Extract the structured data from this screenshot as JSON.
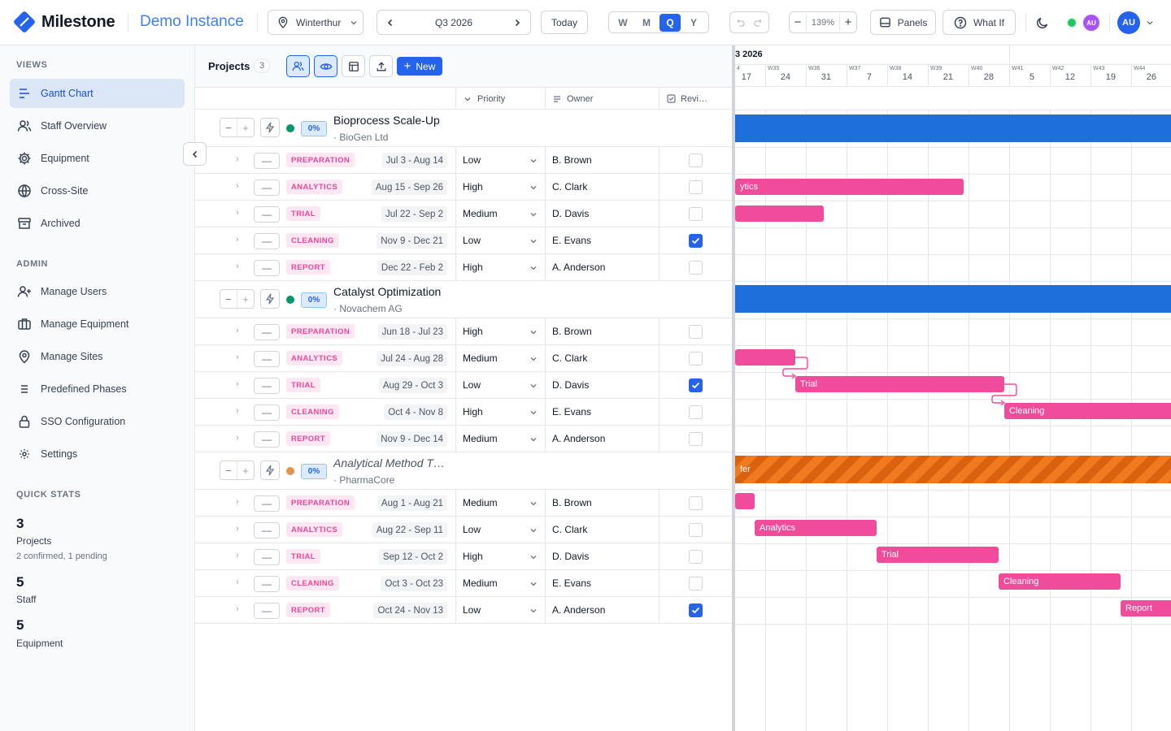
{
  "header": {
    "brand": "Milestone",
    "instance": "Demo Instance",
    "site": "Winterthur",
    "period": "Q3 2026",
    "today": "Today",
    "views": [
      "W",
      "M",
      "Q",
      "Y"
    ],
    "active_view": "Q",
    "zoom": "139%",
    "panels": "Panels",
    "whatif": "What If",
    "avatar_small": "AU",
    "avatar": "AU"
  },
  "sidebar": {
    "views_title": "VIEWS",
    "views": [
      {
        "label": "Gantt Chart",
        "icon": "gantt-icon",
        "active": true
      },
      {
        "label": "Staff Overview",
        "icon": "users-icon"
      },
      {
        "label": "Equipment",
        "icon": "gear-icon"
      },
      {
        "label": "Cross-Site",
        "icon": "globe-icon"
      },
      {
        "label": "Archived",
        "icon": "archive-icon"
      }
    ],
    "admin_title": "ADMIN",
    "admin": [
      {
        "label": "Manage Users",
        "icon": "user-plus-icon"
      },
      {
        "label": "Manage Equipment",
        "icon": "briefcase-icon"
      },
      {
        "label": "Manage Sites",
        "icon": "map-pin-icon"
      },
      {
        "label": "Predefined Phases",
        "icon": "list-icon"
      },
      {
        "label": "SSO Configuration",
        "icon": "lock-icon"
      },
      {
        "label": "Settings",
        "icon": "settings-icon"
      }
    ],
    "stats_title": "QUICK STATS",
    "stats": [
      {
        "num": "3",
        "label": "Projects",
        "sub": "2 confirmed, 1 pending"
      },
      {
        "num": "5",
        "label": "Staff",
        "sub": ""
      },
      {
        "num": "5",
        "label": "Equipment",
        "sub": ""
      }
    ]
  },
  "toolbar": {
    "title": "Projects",
    "count": "3",
    "new_label": "New"
  },
  "columns": {
    "priority": "Priority",
    "owner": "Owner",
    "review": "Revi…"
  },
  "projects": [
    {
      "name": "Bioprocess Scale-Up",
      "client": "· BioGen Ltd",
      "pct": "0%",
      "status_color": "#059669",
      "italic": false,
      "phases": [
        {
          "tag": "PREPARATION",
          "dates": "Jul 3 - Aug 14",
          "priority": "Low",
          "owner": "B. Brown",
          "review": false
        },
        {
          "tag": "ANALYTICS",
          "dates": "Aug 15 - Sep 26",
          "priority": "High",
          "owner": "C. Clark",
          "review": false
        },
        {
          "tag": "TRIAL",
          "dates": "Jul 22 - Sep 2",
          "priority": "Medium",
          "owner": "D. Davis",
          "review": false
        },
        {
          "tag": "CLEANING",
          "dates": "Nov 9 - Dec 21",
          "priority": "Low",
          "owner": "E. Evans",
          "review": true
        },
        {
          "tag": "REPORT",
          "dates": "Dec 22 - Feb 2",
          "priority": "High",
          "owner": "A. Anderson",
          "review": false
        }
      ]
    },
    {
      "name": "Catalyst Optimization",
      "client": "· Novachem AG",
      "pct": "0%",
      "status_color": "#059669",
      "italic": false,
      "phases": [
        {
          "tag": "PREPARATION",
          "dates": "Jun 18 - Jul 23",
          "priority": "High",
          "owner": "B. Brown",
          "review": false
        },
        {
          "tag": "ANALYTICS",
          "dates": "Jul 24 - Aug 28",
          "priority": "Medium",
          "owner": "C. Clark",
          "review": false
        },
        {
          "tag": "TRIAL",
          "dates": "Aug 29 - Oct 3",
          "priority": "Low",
          "owner": "D. Davis",
          "review": true
        },
        {
          "tag": "CLEANING",
          "dates": "Oct 4 - Nov 8",
          "priority": "High",
          "owner": "E. Evans",
          "review": false
        },
        {
          "tag": "REPORT",
          "dates": "Nov 9 - Dec 14",
          "priority": "Medium",
          "owner": "A. Anderson",
          "review": false
        }
      ]
    },
    {
      "name": "Analytical Method T…",
      "client": "· PharmaCore",
      "pct": "0%",
      "status_color": "#e5934a",
      "italic": true,
      "phases": [
        {
          "tag": "PREPARATION",
          "dates": "Aug 1 - Aug 21",
          "priority": "Medium",
          "owner": "B. Brown",
          "review": false
        },
        {
          "tag": "ANALYTICS",
          "dates": "Aug 22 - Sep 11",
          "priority": "Low",
          "owner": "C. Clark",
          "review": false
        },
        {
          "tag": "TRIAL",
          "dates": "Sep 12 - Oct 2",
          "priority": "High",
          "owner": "D. Davis",
          "review": false
        },
        {
          "tag": "CLEANING",
          "dates": "Oct 3 - Oct 23",
          "priority": "Medium",
          "owner": "E. Evans",
          "review": false
        },
        {
          "tag": "REPORT",
          "dates": "Oct 24 - Nov 13",
          "priority": "Low",
          "owner": "A. Anderson",
          "review": true
        }
      ]
    }
  ],
  "gantt": {
    "month_label": "3 2026",
    "weeks": [
      {
        "w": "4",
        "d": "17"
      },
      {
        "w": "W35",
        "d": "24"
      },
      {
        "w": "W36",
        "d": "31"
      },
      {
        "w": "W37",
        "d": "7"
      },
      {
        "w": "W38",
        "d": "14"
      },
      {
        "w": "W39",
        "d": "21"
      },
      {
        "w": "W40",
        "d": "28"
      },
      {
        "w": "W41",
        "d": "5"
      },
      {
        "w": "W42",
        "d": "12"
      },
      {
        "w": "W43",
        "d": "19"
      },
      {
        "w": "W44",
        "d": "26"
      }
    ],
    "bar_labels": {
      "p1_analytics": "ytics",
      "p2_trial": "Trial",
      "p2_cleaning": "Cleaning",
      "p3_summary": "fer",
      "p3_analytics": "Analytics",
      "p3_trial": "Trial",
      "p3_cleaning": "Cleaning",
      "p3_report": "Report"
    },
    "colors": {
      "summary": "#1e6fd9",
      "phase": "#f14c9c",
      "pending": "#d9610f"
    }
  }
}
